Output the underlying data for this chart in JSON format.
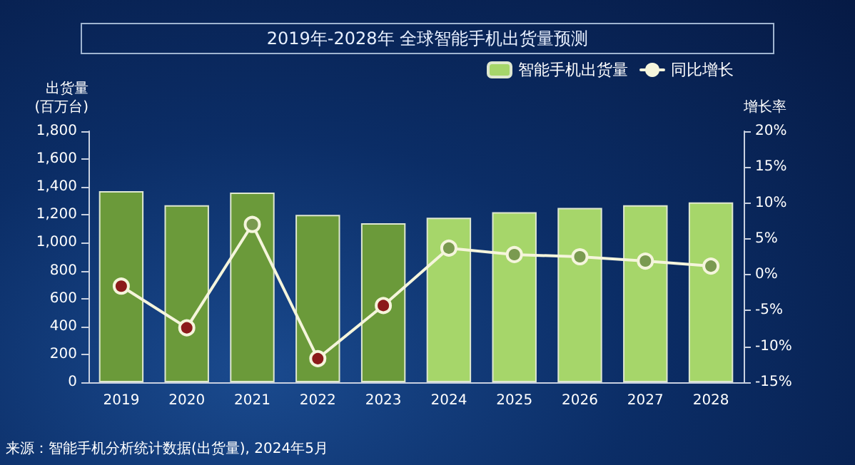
{
  "chart_data": {
    "type": "bar",
    "title": "2019年-2028年 全球智能手机出货量预测",
    "ylabel": "出货量\n(百万台)",
    "y2label": "增长率",
    "categories": [
      "2019",
      "2020",
      "2021",
      "2022",
      "2023",
      "2024",
      "2025",
      "2026",
      "2027",
      "2028"
    ],
    "series": [
      {
        "name": "智能手机出货量",
        "color": "#a6d66a",
        "colors": [
          "#6b9a3a",
          "#6b9a3a",
          "#6b9a3a",
          "#6b9a3a",
          "#6b9a3a",
          "#a6d66a",
          "#a6d66a",
          "#a6d66a",
          "#a6d66a",
          "#a6d66a"
        ],
        "values": [
          1370,
          1270,
          1360,
          1200,
          1140,
          1180,
          1220,
          1250,
          1270,
          1290
        ]
      },
      {
        "name": "同比增长",
        "type": "line",
        "axis": "y2",
        "color": "#f5f5dc",
        "colors": [
          "#8b1a1a",
          "#8b1a1a",
          "#7a9a50",
          "#8b1a1a",
          "#8b1a1a",
          "#7a9a50",
          "#7a9a50",
          "#7a9a50",
          "#7a9a50",
          "#7a9a50"
        ],
        "values": [
          -1.6,
          -7.4,
          7.0,
          -11.7,
          -4.3,
          3.7,
          2.8,
          2.5,
          1.9,
          1.2
        ]
      }
    ],
    "ylim": [
      0,
      1800
    ],
    "yticks": [
      0,
      200,
      400,
      600,
      800,
      {
        "value": 1000,
        "label": "1,000"
      },
      {
        "value": 1200,
        "label": "1,200"
      },
      {
        "value": 1400,
        "label": "1,400"
      },
      {
        "value": 1600,
        "label": "1,600"
      },
      {
        "value": 1800,
        "label": "1,800"
      }
    ],
    "y2lim": [
      -15,
      20
    ],
    "y2ticks": [
      {
        "value": -15,
        "label": "-15%"
      },
      {
        "value": -10,
        "label": "-10%"
      },
      {
        "value": -5,
        "label": "-5%"
      },
      {
        "value": 0,
        "label": "0%"
      },
      {
        "value": 5,
        "label": "5%"
      },
      {
        "value": 10,
        "label": "10%"
      },
      {
        "value": 15,
        "label": "15%"
      },
      {
        "value": 20,
        "label": "20%"
      }
    ],
    "grid": false,
    "legend": "top right",
    "marker": "circle",
    "line_style": "solid",
    "annotations": [
      "来源：智能手机分析统计数据(出货量), 2024年5月"
    ]
  }
}
